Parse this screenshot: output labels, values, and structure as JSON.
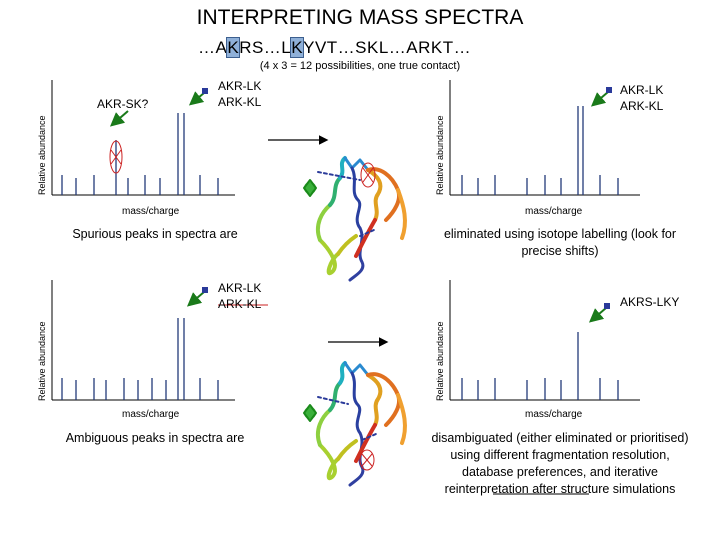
{
  "title": "INTERPRETING MASS SPECTRA",
  "sequence": {
    "parts": [
      {
        "text": "…A",
        "hl": false
      },
      {
        "text": "K",
        "hl": true
      },
      {
        "text": "RS…L",
        "hl": false
      },
      {
        "text": "K",
        "hl": true
      },
      {
        "text": "YVT…SKL…ARKT…",
        "hl": false
      }
    ]
  },
  "subtitle": "(4 x 3 = 12 possibilities, one true contact)",
  "axis": {
    "y_label": "Relative abundance",
    "x_label": "mass/charge"
  },
  "panels": {
    "top_left": {
      "peak_label_1": "AKR-SK?",
      "peak_label_2a": "AKR-LK",
      "peak_label_2b": "ARK-KL"
    },
    "top_right": {
      "peak_label_a": "AKR-LK",
      "peak_label_b": "ARK-KL"
    },
    "bottom_left": {
      "peak_label_a": "AKR-LK",
      "peak_label_b": "ARK-KL"
    },
    "bottom_right": {
      "peak_label": "AKRS-LKY"
    }
  },
  "captions": {
    "spurious_left": "Spurious peaks in spectra are",
    "spurious_right": "eliminated using isotope labelling (look for precise shifts)",
    "ambiguous_left": "Ambiguous peaks in spectra are",
    "ambiguous_right_1": "disambiguated (either eliminated or prioritised) using different fragmentation resolution, database preferences, and iterative ",
    "ambiguous_right_2": "reinterpretation",
    "ambiguous_right_3": " after structure simulations"
  },
  "colors": {
    "highlight": "#8fb0d8",
    "arrow_green": "#1a7a1a",
    "pointer_blue": "#2a3a9a",
    "mark_red": "#cc2222"
  }
}
